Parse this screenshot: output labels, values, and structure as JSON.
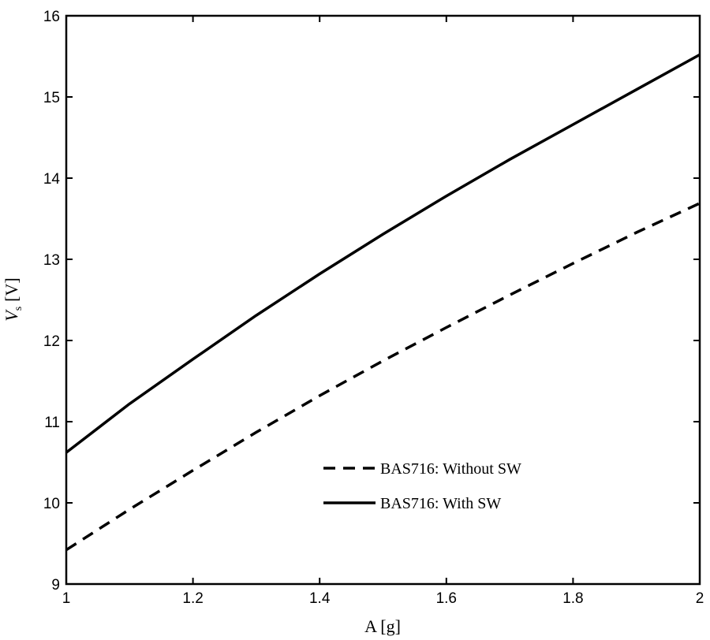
{
  "chart_data": {
    "type": "line",
    "xlabel": "A [g]",
    "ylabel": "V",
    "ylabel_sub": "s",
    "ylabel_unit": "[V]",
    "xlim": [
      1,
      2
    ],
    "ylim": [
      9,
      16
    ],
    "xticks": [
      1,
      1.2,
      1.4,
      1.6,
      1.8,
      2
    ],
    "xtick_labels": [
      "1",
      "1.2",
      "1.4",
      "1.6",
      "1.8",
      "2"
    ],
    "yticks": [
      9,
      10,
      11,
      12,
      13,
      14,
      15,
      16
    ],
    "ytick_labels": [
      "9",
      "10",
      "11",
      "12",
      "13",
      "14",
      "15",
      "16"
    ],
    "grid": false,
    "legend_position": "lower-right",
    "series": [
      {
        "name": "BAS716: Without SW",
        "style": "dashed",
        "color": "#000000",
        "x": [
          1,
          1.1,
          1.2,
          1.3,
          1.4,
          1.5,
          1.6,
          1.7,
          1.8,
          1.9,
          2
        ],
        "y": [
          9.42,
          9.92,
          10.4,
          10.87,
          11.32,
          11.75,
          12.16,
          12.56,
          12.95,
          13.33,
          13.69
        ]
      },
      {
        "name": "BAS716: With SW",
        "style": "solid",
        "color": "#000000",
        "x": [
          1,
          1.1,
          1.2,
          1.3,
          1.4,
          1.5,
          1.6,
          1.7,
          1.8,
          1.9,
          2
        ],
        "y": [
          10.62,
          11.22,
          11.77,
          12.31,
          12.82,
          13.31,
          13.78,
          14.23,
          14.66,
          15.09,
          15.52
        ]
      }
    ]
  }
}
